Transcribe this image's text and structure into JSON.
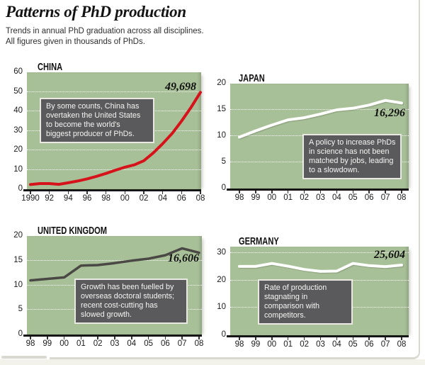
{
  "header": {
    "title": "Patterns of PhD production",
    "subtitle": "Trends in annual PhD graduation across all disciplines.\nAll figures given in thousands of PhDs."
  },
  "colors": {
    "plot_background": "#a8c098",
    "gridline": "#ffffff",
    "axis": "#161616",
    "annotation_background": "#5a595b",
    "annotation_text": "#f5f5f3",
    "frame_border": "#d9d9d1",
    "china_line": "#d6121a",
    "japan_line": "#ffffff",
    "uk_line": "#4a4844",
    "germany_line": "#ffffff"
  },
  "chart_data": [
    {
      "id": "china",
      "type": "line",
      "title": "CHINA",
      "x": [
        1990,
        1991,
        1992,
        1993,
        1994,
        1995,
        1996,
        1997,
        1998,
        1999,
        2000,
        2001,
        2002,
        2003,
        2004,
        2005,
        2006,
        2007,
        2008
      ],
      "values": [
        2.4,
        2.9,
        2.9,
        2.5,
        3.3,
        4.2,
        5.3,
        6.6,
        8.1,
        9.8,
        11.3,
        12.5,
        14.6,
        18.6,
        23.4,
        28.6,
        35.0,
        42.0,
        49.7
      ],
      "ylim": [
        0,
        60
      ],
      "yticks": [
        0,
        10,
        20,
        30,
        40,
        50,
        60
      ],
      "xtick_labels": [
        "1990",
        "92",
        "94",
        "96",
        "98",
        "00",
        "02",
        "04",
        "06",
        "08"
      ],
      "xtick_years": [
        1990,
        1992,
        1994,
        1996,
        1998,
        2000,
        2002,
        2004,
        2006,
        2008
      ],
      "grid": true,
      "legend": "none",
      "end_label": "49,698",
      "line_color": "#d6121a",
      "annotation": "By some counts, China has\novertaken the United States\nto become the world's\nbiggest producer of PhDs."
    },
    {
      "id": "japan",
      "type": "line",
      "title": "JAPAN",
      "x": [
        1998,
        1999,
        2000,
        2001,
        2002,
        2003,
        2004,
        2005,
        2006,
        2007,
        2008
      ],
      "values": [
        9.8,
        11.0,
        12.1,
        13.1,
        13.5,
        14.2,
        15.0,
        15.3,
        15.9,
        16.8,
        16.3
      ],
      "ylim": [
        0,
        20
      ],
      "yticks": [
        0,
        5,
        10,
        15,
        20
      ],
      "xtick_labels": [
        "98",
        "99",
        "00",
        "01",
        "02",
        "03",
        "04",
        "05",
        "06",
        "07",
        "08"
      ],
      "xtick_years": [
        1998,
        1999,
        2000,
        2001,
        2002,
        2003,
        2004,
        2005,
        2006,
        2007,
        2008
      ],
      "grid": true,
      "legend": "none",
      "end_label": "16,296",
      "line_color": "#ffffff",
      "annotation": "A policy to increase PhDs\nin science has not been\nmatched by jobs, leading\nto a slowdown."
    },
    {
      "id": "uk",
      "type": "line",
      "title": "UNITED KINGDOM",
      "x": [
        1998,
        1999,
        2000,
        2001,
        2002,
        2003,
        2004,
        2005,
        2006,
        2007,
        2008
      ],
      "values": [
        11.0,
        11.3,
        11.6,
        14.0,
        14.1,
        14.5,
        15.0,
        15.4,
        16.1,
        17.5,
        16.6
      ],
      "ylim": [
        0,
        20
      ],
      "yticks": [
        0,
        5,
        10,
        15,
        20
      ],
      "xtick_labels": [
        "98",
        "99",
        "00",
        "01",
        "02",
        "03",
        "04",
        "05",
        "06",
        "07",
        "08"
      ],
      "xtick_years": [
        1998,
        1999,
        2000,
        2001,
        2002,
        2003,
        2004,
        2005,
        2006,
        2007,
        2008
      ],
      "grid": true,
      "legend": "none",
      "end_label": "16,606",
      "line_color": "#4a4844",
      "annotation": "Growth has been fuelled by\noverseas doctoral students;\nrecent cost-cutting has\nslowed growth."
    },
    {
      "id": "germany",
      "type": "line",
      "title": "GERMANY",
      "x": [
        1998,
        1999,
        2000,
        2001,
        2002,
        2003,
        2004,
        2005,
        2006,
        2007,
        2008
      ],
      "values": [
        25.1,
        25.1,
        26.2,
        25.2,
        24.0,
        23.3,
        23.4,
        26.2,
        25.4,
        25.0,
        25.6
      ],
      "ylim": [
        0,
        30
      ],
      "yticks": [
        0,
        10,
        20,
        30
      ],
      "xtick_labels": [
        "98",
        "99",
        "00",
        "01",
        "02",
        "03",
        "04",
        "05",
        "06",
        "07",
        "08"
      ],
      "xtick_years": [
        1998,
        1999,
        2000,
        2001,
        2002,
        2003,
        2004,
        2005,
        2006,
        2007,
        2008
      ],
      "grid": true,
      "legend": "none",
      "end_label": "25,604",
      "line_color": "#ffffff",
      "annotation": "Rate of production\nstagnating in\ncomparison with\ncompetitors."
    }
  ]
}
